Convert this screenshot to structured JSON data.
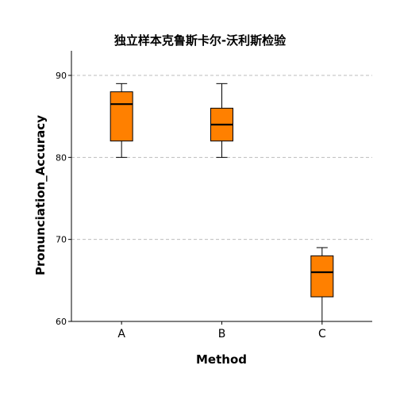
{
  "chart_data": {
    "type": "boxplot",
    "title": "独立样本克鲁斯卡尔-沃利斯检验",
    "xlabel": "Method",
    "ylabel": "Pronunciation_Accuracy",
    "ylim": [
      60,
      93
    ],
    "yticks": [
      60,
      70,
      80,
      90
    ],
    "grid": "horizontal-dashed",
    "box_color": "#ff8000",
    "categories": [
      "A",
      "B",
      "C"
    ],
    "boxes": [
      {
        "category": "A",
        "min": 80,
        "q1": 82,
        "median": 86.5,
        "q3": 88,
        "max": 89
      },
      {
        "category": "B",
        "min": 80,
        "q1": 82,
        "median": 84,
        "q3": 86,
        "max": 89
      },
      {
        "category": "C",
        "min": 60,
        "q1": 63,
        "median": 66,
        "q3": 68,
        "max": 69
      }
    ]
  }
}
